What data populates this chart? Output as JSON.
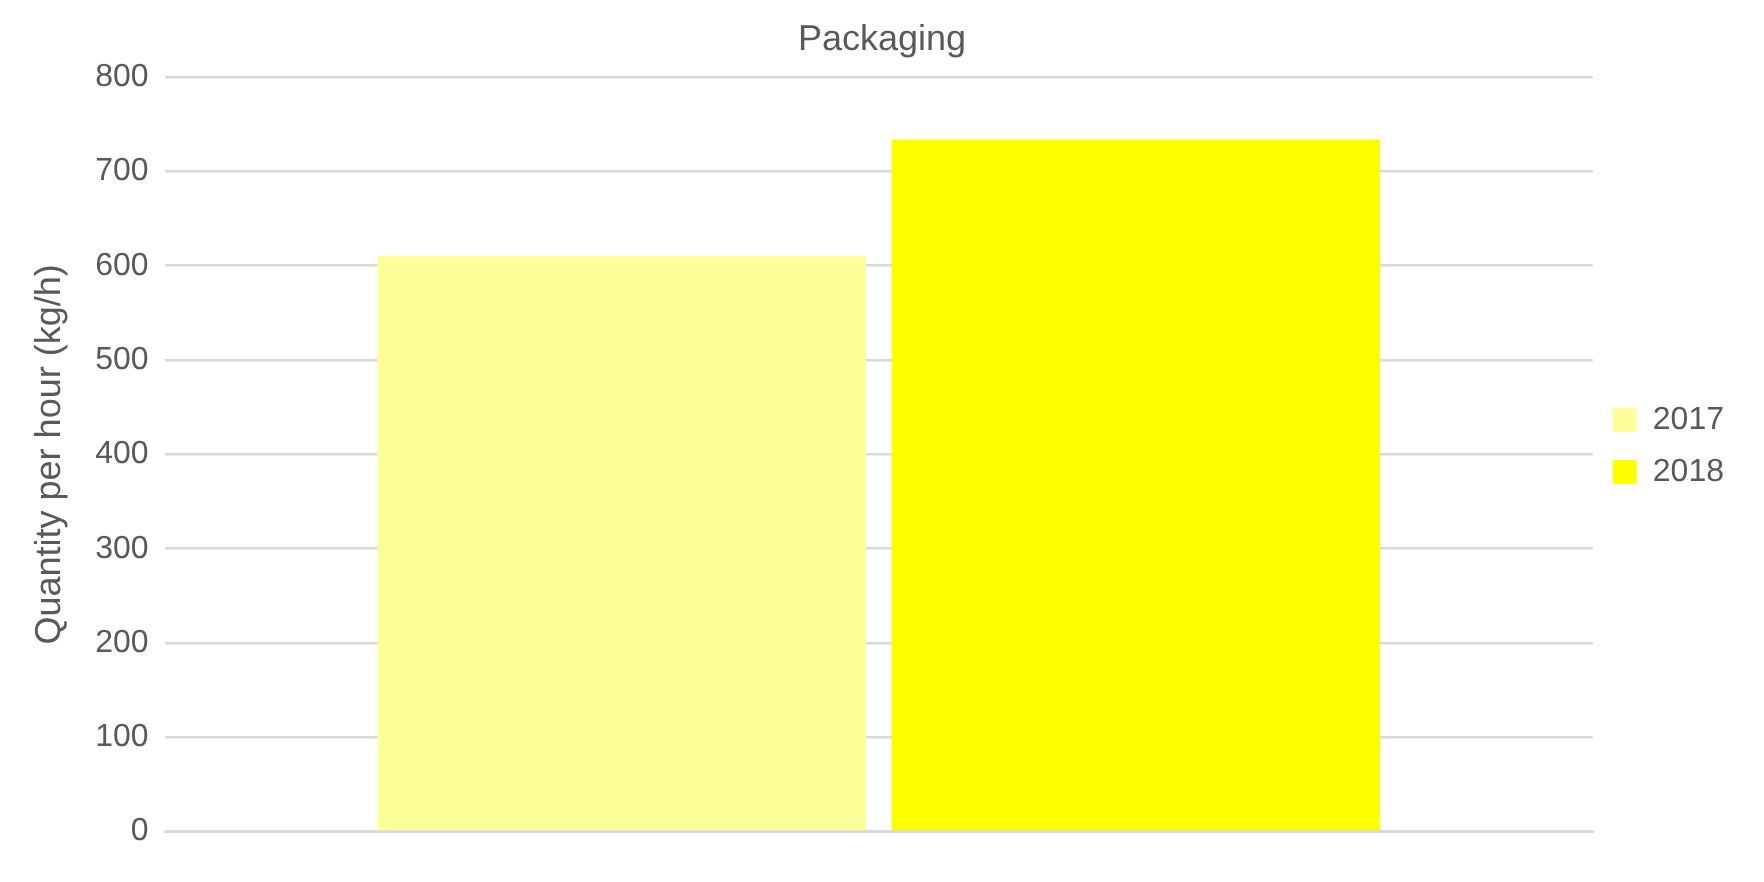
{
  "chart_data": {
    "type": "bar",
    "title": "Packaging",
    "ylabel": "Quantity per hour (kg/h)",
    "categories": [
      null
    ],
    "series": [
      {
        "name": "2017",
        "color": "#ffff99",
        "values": [
          610
        ]
      },
      {
        "name": "2018",
        "color": "#ffff00",
        "values": [
          734
        ]
      }
    ],
    "ylim": [
      0,
      800
    ],
    "yticks": [
      0,
      100,
      200,
      300,
      400,
      500,
      600,
      700,
      800
    ],
    "grid": "y",
    "legend": "right"
  }
}
